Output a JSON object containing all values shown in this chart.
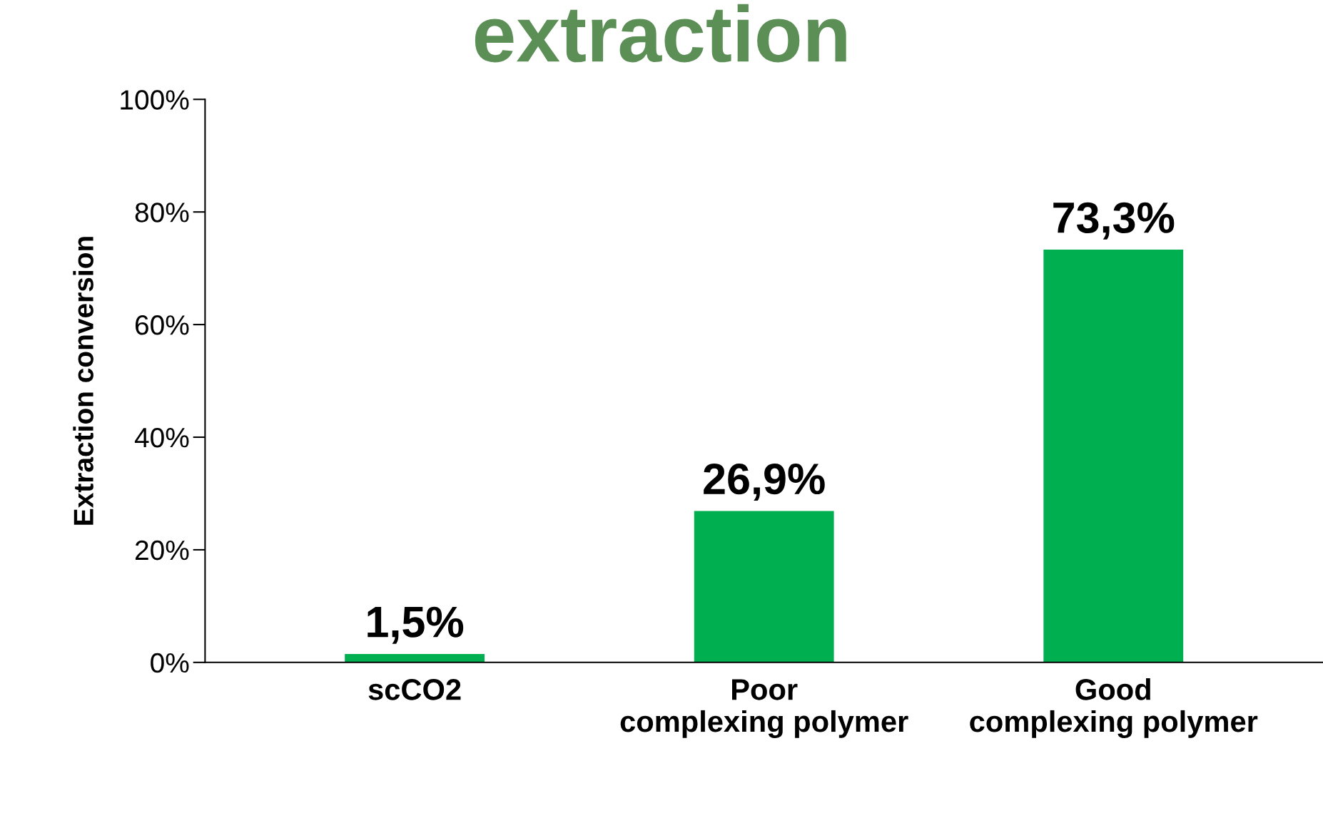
{
  "chart_data": {
    "type": "bar",
    "title": "extraction",
    "ylabel": "Extraction conversion",
    "categories": [
      "scCO2",
      "Poor complexing polymer",
      "Good complexing polymer"
    ],
    "values": [
      1.5,
      26.9,
      73.3
    ],
    "color": "#00b050",
    "value_labels": [
      "1,5%",
      "26,9%",
      "73,3%"
    ],
    "ylim": [
      0,
      100
    ],
    "yticks": [
      {
        "value": 0,
        "label": "0%"
      },
      {
        "value": 20,
        "label": "20%"
      },
      {
        "value": 40,
        "label": "40%"
      },
      {
        "value": 60,
        "label": "60%"
      },
      {
        "value": 80,
        "label": "80%"
      },
      {
        "value": 100,
        "label": "100%"
      }
    ],
    "grid": false,
    "legend": false
  }
}
